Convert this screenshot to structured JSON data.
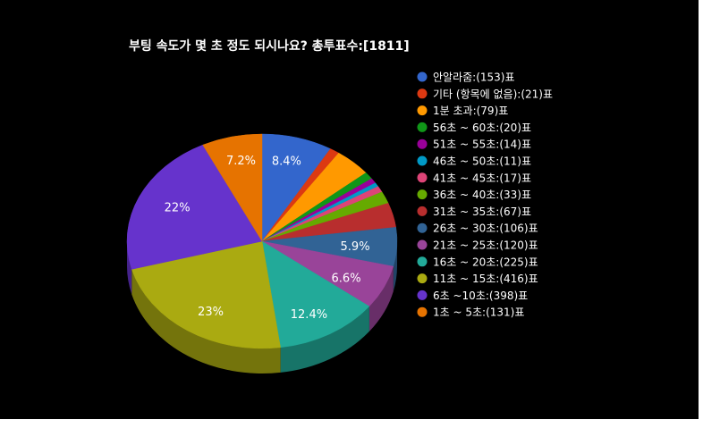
{
  "chart_data": {
    "type": "pie",
    "title": "부팅 속도가 몇 초 정도 되시나요? 총투표수:[1811]",
    "legend_position": "right",
    "slices": [
      {
        "legend": "안알라줌:(153)표",
        "value": 153,
        "color": "#3366cc",
        "label": "8.4%"
      },
      {
        "legend": "기타 (항목에 없음):(21)표",
        "value": 21,
        "color": "#dc3912",
        "label": ""
      },
      {
        "legend": "1분 초과:(79)표",
        "value": 79,
        "color": "#ff9900",
        "label": ""
      },
      {
        "legend": "56초 ~ 60초:(20)표",
        "value": 20,
        "color": "#109618",
        "label": ""
      },
      {
        "legend": "51초 ~ 55초:(14)표",
        "value": 14,
        "color": "#990099",
        "label": ""
      },
      {
        "legend": "46초 ~ 50초:(11)표",
        "value": 11,
        "color": "#0099c6",
        "label": ""
      },
      {
        "legend": "41초 ~ 45초:(17)표",
        "value": 17,
        "color": "#dd4477",
        "label": ""
      },
      {
        "legend": "36초 ~ 40초:(33)표",
        "value": 33,
        "color": "#66aa00",
        "label": ""
      },
      {
        "legend": "31초 ~ 35초:(67)표",
        "value": 67,
        "color": "#b82e2e",
        "label": ""
      },
      {
        "legend": "26초 ~ 30초:(106)표",
        "value": 106,
        "color": "#316395",
        "label": "5.9%"
      },
      {
        "legend": "21초 ~ 25초:(120)표",
        "value": 120,
        "color": "#994499",
        "label": "6.6%"
      },
      {
        "legend": "16초 ~ 20초:(225)표",
        "value": 225,
        "color": "#22aa99",
        "label": "12.4%"
      },
      {
        "legend": "11초 ~ 15초:(416)표",
        "value": 416,
        "color": "#aaaa11",
        "label": "23%"
      },
      {
        "legend": "6초 ~10초:(398)표",
        "value": 398,
        "color": "#6633cc",
        "label": "22%"
      },
      {
        "legend": "1초 ~ 5초:(131)표",
        "value": 131,
        "color": "#e67300",
        "label": "7.2%"
      }
    ]
  }
}
